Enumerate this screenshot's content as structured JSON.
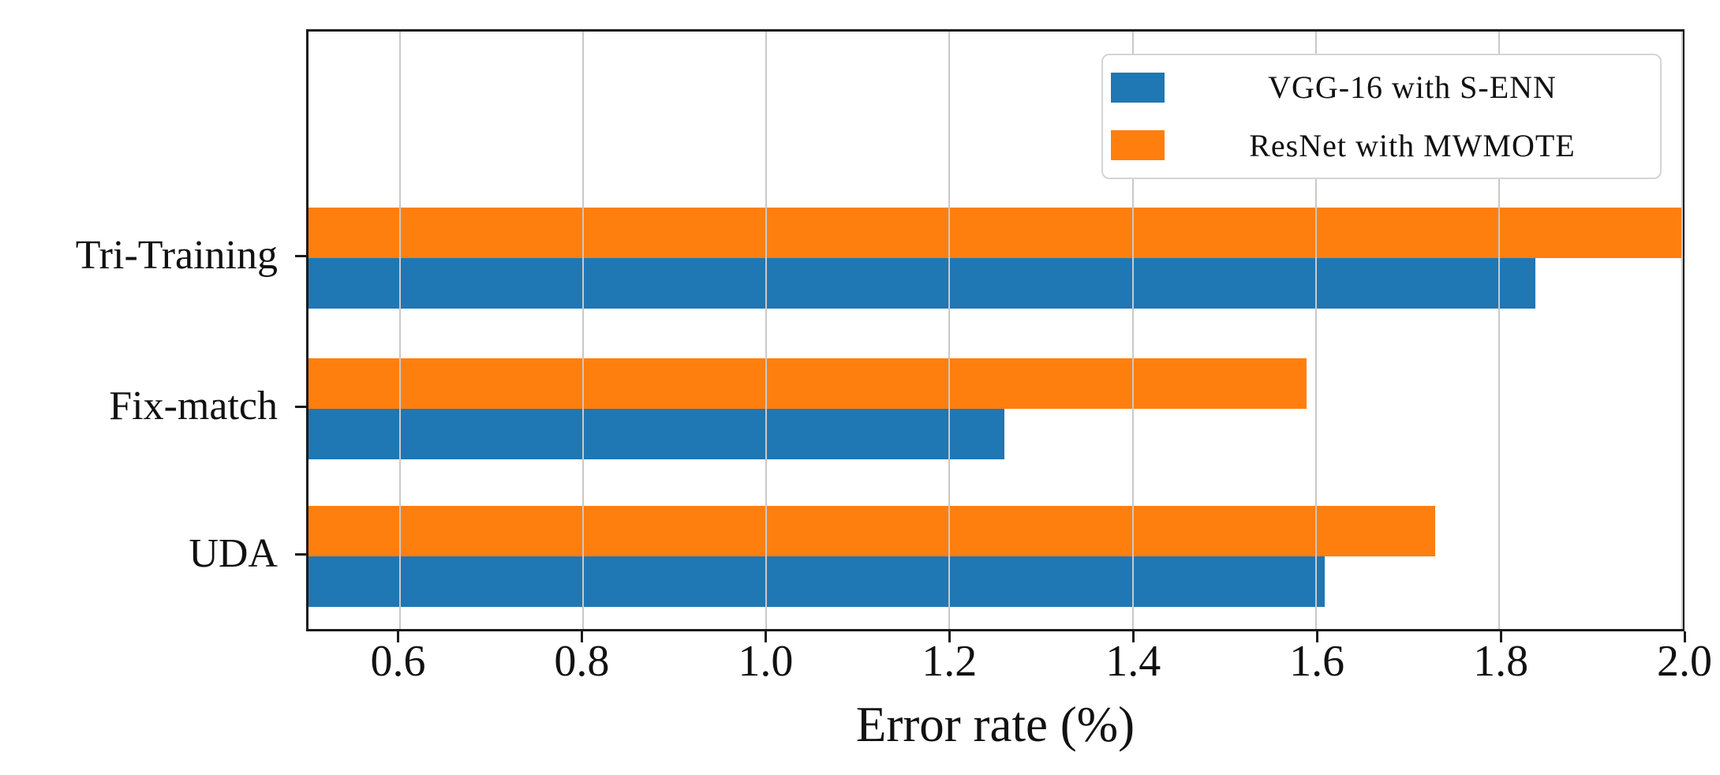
{
  "chart_data": {
    "type": "bar",
    "orientation": "horizontal",
    "title": "",
    "xlabel": "Error rate (%)",
    "ylabel": "",
    "categories": [
      "Tri-Training",
      "Fix-match",
      "UDA"
    ],
    "series": [
      {
        "name": "VGG-16 with S-ENN",
        "color": "#1f77b4",
        "values": [
          1.84,
          1.26,
          1.61
        ]
      },
      {
        "name": "ResNet with MWMOTE",
        "color": "#ff7f0e",
        "values": [
          2.0,
          1.59,
          1.73
        ]
      }
    ],
    "xlim": [
      0.5,
      2.0
    ],
    "xticks": [
      0.6,
      0.8,
      1.0,
      1.2,
      1.4,
      1.6,
      1.8,
      2.0
    ],
    "xtick_label_format": "one_decimal",
    "grid": true,
    "gridline_color": "#c9c9c9",
    "grid_above_bars": true,
    "axis_color": "#1a1a1a",
    "legend_position": "upper-right",
    "notes": "Tri-Training ResNet-with-MWMOTE bar is clipped at the 2.0 axis limit"
  }
}
